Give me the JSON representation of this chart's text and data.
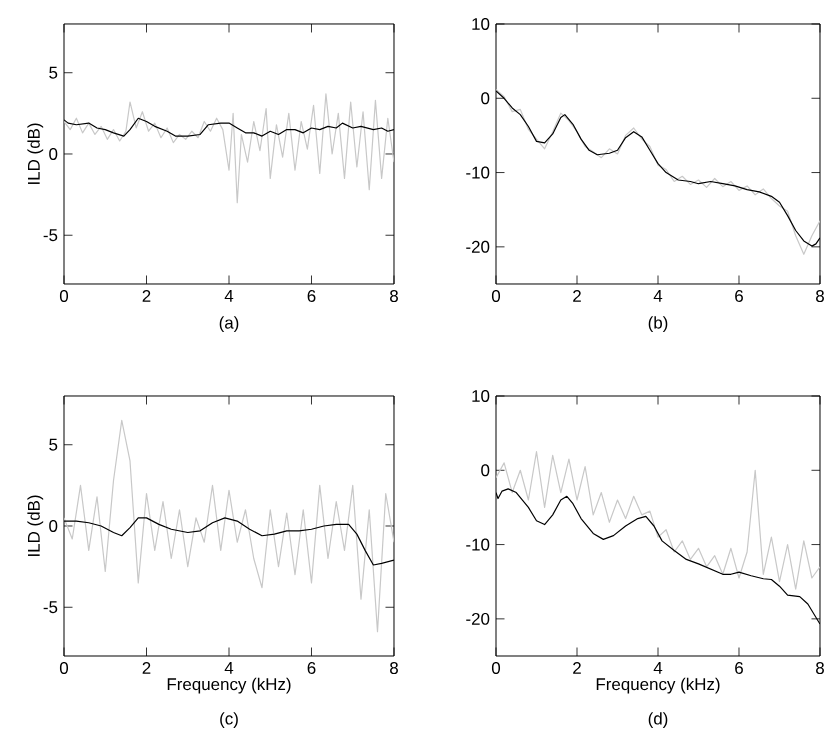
{
  "chart_data": [
    {
      "type": "line",
      "ylabel": "ILD (dB)",
      "annotations": [
        "(a)"
      ],
      "xlim": [
        0,
        8
      ],
      "ylim": [
        -8,
        8
      ],
      "xticks": [
        0,
        2,
        4,
        6,
        8
      ],
      "yticks": [
        -5,
        0,
        5
      ],
      "series": [
        {
          "color": "#c8c8c8",
          "x": [
            0,
            0.15,
            0.3,
            0.45,
            0.6,
            0.75,
            0.9,
            1.05,
            1.2,
            1.35,
            1.5,
            1.6,
            1.75,
            1.9,
            2.05,
            2.2,
            2.35,
            2.5,
            2.65,
            2.8,
            2.95,
            3.1,
            3.25,
            3.4,
            3.55,
            3.7,
            3.85,
            4.0,
            4.1,
            4.2,
            4.3,
            4.45,
            4.6,
            4.75,
            4.9,
            5.0,
            5.15,
            5.3,
            5.45,
            5.6,
            5.75,
            5.9,
            6.05,
            6.2,
            6.35,
            6.5,
            6.65,
            6.8,
            6.95,
            7.1,
            7.25,
            7.4,
            7.55,
            7.7,
            7.85,
            8.0
          ],
          "values": [
            2.0,
            1.5,
            2.2,
            1.3,
            1.9,
            1.2,
            1.7,
            0.9,
            1.5,
            0.8,
            1.4,
            3.2,
            1.6,
            2.6,
            1.4,
            1.9,
            1.0,
            1.6,
            0.7,
            1.2,
            0.9,
            1.4,
            1.0,
            2.0,
            1.4,
            2.2,
            1.5,
            -1.0,
            2.5,
            -3.0,
            1.2,
            -0.5,
            2.0,
            0.2,
            2.8,
            -1.5,
            1.8,
            -0.2,
            2.5,
            -1.0,
            2.0,
            0.3,
            3.0,
            -1.2,
            3.7,
            0.0,
            2.5,
            -1.5,
            3.2,
            -0.8,
            2.6,
            -2.2,
            3.3,
            -1.5,
            2.2,
            -0.5
          ]
        },
        {
          "color": "#000000",
          "x": [
            0,
            0.1,
            0.3,
            0.6,
            0.8,
            1.0,
            1.2,
            1.45,
            1.6,
            1.8,
            2.0,
            2.2,
            2.5,
            2.7,
            3.0,
            3.3,
            3.5,
            3.8,
            4.0,
            4.2,
            4.4,
            4.6,
            4.8,
            5.0,
            5.2,
            5.4,
            5.6,
            5.8,
            6.0,
            6.2,
            6.4,
            6.6,
            6.75,
            7.0,
            7.2,
            7.5,
            7.7,
            7.85,
            8.0
          ],
          "values": [
            2.1,
            1.9,
            1.8,
            1.9,
            1.6,
            1.5,
            1.3,
            1.1,
            1.5,
            2.2,
            2.0,
            1.7,
            1.4,
            1.1,
            1.1,
            1.2,
            1.8,
            1.9,
            1.9,
            1.6,
            1.3,
            1.3,
            1.1,
            1.4,
            1.2,
            1.5,
            1.5,
            1.3,
            1.6,
            1.5,
            1.7,
            1.6,
            1.9,
            1.6,
            1.7,
            1.5,
            1.6,
            1.4,
            1.5
          ]
        }
      ]
    },
    {
      "type": "line",
      "annotations": [
        "(b)"
      ],
      "xlim": [
        0,
        8
      ],
      "ylim": [
        -25,
        10
      ],
      "xticks": [
        0,
        2,
        4,
        6,
        8
      ],
      "yticks": [
        -20,
        -10,
        0,
        10
      ],
      "series": [
        {
          "color": "#c8c8c8",
          "x": [
            0,
            0.2,
            0.4,
            0.6,
            0.8,
            1.0,
            1.2,
            1.4,
            1.6,
            1.8,
            2.0,
            2.2,
            2.4,
            2.6,
            2.8,
            3.0,
            3.2,
            3.4,
            3.6,
            3.8,
            4.0,
            4.2,
            4.4,
            4.6,
            4.8,
            5.0,
            5.2,
            5.4,
            5.6,
            5.8,
            6.0,
            6.2,
            6.4,
            6.6,
            6.8,
            7.0,
            7.2,
            7.4,
            7.6,
            7.8,
            8.0
          ],
          "values": [
            1.2,
            0.2,
            -1.8,
            -1.5,
            -4.2,
            -5.5,
            -6.8,
            -4.5,
            -2.0,
            -3.0,
            -4.5,
            -6.5,
            -7.2,
            -8.0,
            -6.8,
            -7.5,
            -5.0,
            -4.0,
            -5.5,
            -6.5,
            -9.0,
            -9.6,
            -11.2,
            -10.5,
            -11.6,
            -11.0,
            -12.0,
            -10.8,
            -11.9,
            -11.2,
            -12.4,
            -11.8,
            -13.0,
            -12.2,
            -13.5,
            -14.5,
            -15.2,
            -18.5,
            -21.0,
            -18.5,
            -16.5
          ]
        },
        {
          "color": "#000000",
          "x": [
            0,
            0.2,
            0.4,
            0.6,
            0.8,
            1.0,
            1.2,
            1.4,
            1.6,
            1.7,
            1.9,
            2.1,
            2.3,
            2.5,
            2.8,
            3.0,
            3.2,
            3.4,
            3.6,
            3.8,
            4.0,
            4.2,
            4.5,
            4.8,
            5.0,
            5.3,
            5.6,
            5.9,
            6.2,
            6.5,
            6.8,
            7.0,
            7.2,
            7.4,
            7.6,
            7.8,
            7.9,
            8.0
          ],
          "values": [
            1.0,
            0,
            -1.3,
            -2.2,
            -3.8,
            -5.8,
            -6.0,
            -4.8,
            -2.6,
            -2.2,
            -3.5,
            -5.5,
            -7.0,
            -7.6,
            -7.4,
            -7.0,
            -5.3,
            -4.5,
            -5.2,
            -7.0,
            -8.8,
            -10.0,
            -11.0,
            -11.2,
            -11.5,
            -11.2,
            -11.5,
            -11.8,
            -12.3,
            -12.6,
            -13.2,
            -14.0,
            -15.8,
            -17.8,
            -19.2,
            -19.9,
            -19.6,
            -18.8
          ]
        }
      ]
    },
    {
      "type": "line",
      "xlabel": "Frequency (kHz)",
      "ylabel": "ILD (dB)",
      "annotations": [
        "(c)"
      ],
      "xlim": [
        0,
        8
      ],
      "ylim": [
        -8,
        8
      ],
      "xticks": [
        0,
        2,
        4,
        6,
        8
      ],
      "yticks": [
        -5,
        0,
        5
      ],
      "series": [
        {
          "color": "#c8c8c8",
          "x": [
            0,
            0.2,
            0.4,
            0.6,
            0.8,
            1.0,
            1.2,
            1.4,
            1.6,
            1.8,
            2.0,
            2.2,
            2.4,
            2.6,
            2.8,
            3.0,
            3.2,
            3.4,
            3.6,
            3.8,
            4.0,
            4.2,
            4.4,
            4.6,
            4.8,
            5.0,
            5.2,
            5.4,
            5.6,
            5.8,
            6.0,
            6.2,
            6.4,
            6.6,
            6.8,
            7.0,
            7.2,
            7.4,
            7.6,
            7.8,
            8.0
          ],
          "values": [
            0.5,
            -0.8,
            2.5,
            -1.5,
            1.8,
            -2.8,
            2.8,
            6.5,
            4.0,
            -3.5,
            2.0,
            -1.5,
            1.5,
            -2.0,
            1.0,
            -2.5,
            0.5,
            -1.0,
            2.5,
            -1.5,
            2.2,
            -1.0,
            1.0,
            -2.0,
            -3.8,
            1.0,
            -2.5,
            0.8,
            -3.0,
            1.0,
            -3.5,
            2.5,
            -2.0,
            1.5,
            -1.5,
            2.5,
            -4.5,
            1.0,
            -6.5,
            2.0,
            -1.0
          ]
        },
        {
          "color": "#000000",
          "x": [
            0,
            0.3,
            0.6,
            0.9,
            1.2,
            1.4,
            1.6,
            1.8,
            2.0,
            2.3,
            2.6,
            3.0,
            3.3,
            3.6,
            3.9,
            4.2,
            4.5,
            4.8,
            5.1,
            5.4,
            5.7,
            6.0,
            6.3,
            6.6,
            6.9,
            7.1,
            7.3,
            7.5,
            7.7,
            8.0
          ],
          "values": [
            0.3,
            0.3,
            0.2,
            0,
            -0.4,
            -0.6,
            -0.1,
            0.5,
            0.5,
            0.1,
            -0.2,
            -0.4,
            -0.3,
            0.2,
            0.5,
            0.3,
            -0.2,
            -0.6,
            -0.5,
            -0.3,
            -0.3,
            -0.2,
            0,
            0.1,
            0.1,
            -0.5,
            -1.5,
            -2.4,
            -2.3,
            -2.1
          ]
        }
      ]
    },
    {
      "type": "line",
      "xlabel": "Frequency (kHz)",
      "annotations": [
        "(d)"
      ],
      "xlim": [
        0,
        8
      ],
      "ylim": [
        -25,
        10
      ],
      "xticks": [
        0,
        2,
        4,
        6,
        8
      ],
      "yticks": [
        -20,
        -10,
        0,
        10
      ],
      "series": [
        {
          "color": "#c8c8c8",
          "x": [
            0,
            0.2,
            0.4,
            0.6,
            0.8,
            1.0,
            1.2,
            1.4,
            1.6,
            1.8,
            2.0,
            2.2,
            2.4,
            2.6,
            2.8,
            3.0,
            3.2,
            3.4,
            3.6,
            3.8,
            4.0,
            4.2,
            4.4,
            4.6,
            4.8,
            5.0,
            5.2,
            5.4,
            5.6,
            5.8,
            6.0,
            6.2,
            6.4,
            6.6,
            6.8,
            7.0,
            7.2,
            7.4,
            7.6,
            7.8,
            8.0
          ],
          "values": [
            -1.0,
            1.0,
            -3.0,
            0.0,
            -4.0,
            2.5,
            -5.0,
            2.0,
            -3.0,
            1.5,
            -4.0,
            0.5,
            -6.0,
            -3.0,
            -7.0,
            -4.0,
            -6.5,
            -3.5,
            -6.0,
            -5.5,
            -9.0,
            -8.0,
            -11.0,
            -9.5,
            -12.0,
            -10.5,
            -13.0,
            -11.5,
            -14.0,
            -10.5,
            -14.5,
            -11.0,
            0.0,
            -14.0,
            -9.0,
            -15.0,
            -10.0,
            -16.0,
            -9.5,
            -14.5,
            -13.0
          ]
        },
        {
          "color": "#000000",
          "x": [
            0,
            0.05,
            0.15,
            0.3,
            0.5,
            0.8,
            1.0,
            1.2,
            1.4,
            1.6,
            1.75,
            1.9,
            2.1,
            2.4,
            2.65,
            2.9,
            3.2,
            3.5,
            3.7,
            3.9,
            4.1,
            4.4,
            4.7,
            5.0,
            5.3,
            5.6,
            5.8,
            6.0,
            6.3,
            6.6,
            6.8,
            7.0,
            7.2,
            7.5,
            7.7,
            8.0
          ],
          "values": [
            -3.0,
            -3.8,
            -2.8,
            -2.5,
            -3.0,
            -5.0,
            -6.8,
            -7.3,
            -6.0,
            -4.0,
            -3.5,
            -4.5,
            -6.5,
            -8.5,
            -9.3,
            -8.8,
            -7.5,
            -6.5,
            -6.2,
            -7.5,
            -9.5,
            -10.8,
            -12.0,
            -12.6,
            -13.3,
            -14.0,
            -14.0,
            -13.7,
            -14.2,
            -14.6,
            -14.7,
            -15.6,
            -16.8,
            -17.0,
            -18.0,
            -20.7
          ]
        }
      ]
    }
  ]
}
